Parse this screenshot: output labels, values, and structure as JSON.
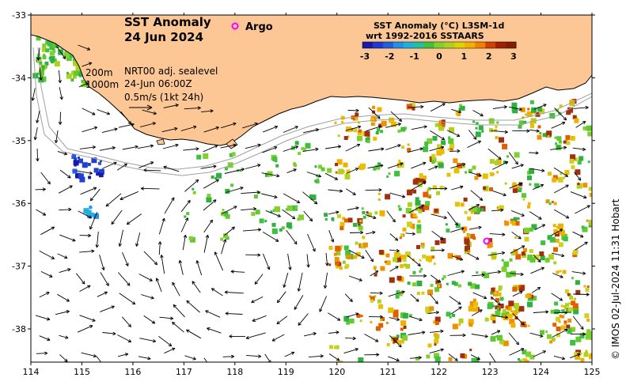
{
  "title": {
    "line1": "SST Anomaly",
    "line2": "24 Jun 2024"
  },
  "argo": {
    "label": "Argo",
    "marker_color": "#ff00ff"
  },
  "legend": {
    "title_line1": "SST Anomaly (°C) L3SM-1d",
    "title_line2": "wrt 1992-2016 SSTAARS",
    "ticks": [
      "-3",
      "-2",
      "-1",
      "0",
      "1",
      "2",
      "3"
    ],
    "colors": [
      "#1a1aa8",
      "#2060e0",
      "#20b0e0",
      "#40c040",
      "#b0d020",
      "#f0a000",
      "#a02000"
    ]
  },
  "info": {
    "depth1": "200m",
    "depth2": "1000m",
    "sealevel": "NRT00 adj. sealevel",
    "time": "24-Jun 06:00Z",
    "scale": "0.5m/s (1kt 24h)"
  },
  "axes": {
    "x_ticks": [
      "114",
      "115",
      "116",
      "117",
      "118",
      "119",
      "120",
      "121",
      "122",
      "123",
      "124",
      "125"
    ],
    "y_ticks": [
      "-33",
      "-34",
      "-35",
      "-36",
      "-37",
      "-38"
    ]
  },
  "credit": "© IMOS 02-Jul-2024 11:31 Hobart",
  "colors": {
    "land": "#fdc795",
    "coast": "#000000",
    "bathy": "#a0a0a0",
    "arrow": "#000000"
  }
}
